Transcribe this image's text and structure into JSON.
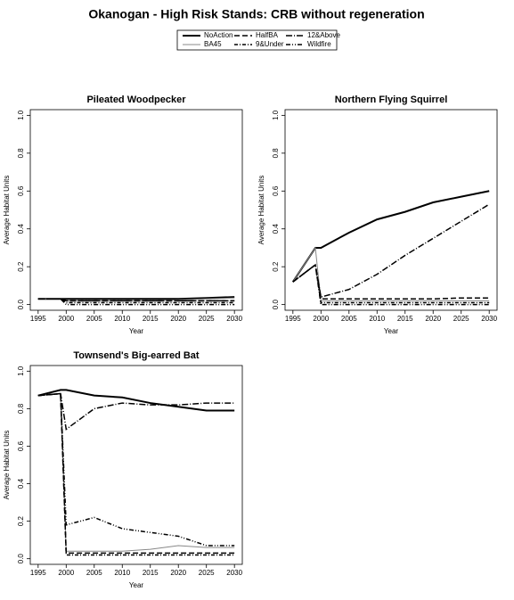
{
  "title": "Okanogan  - High Risk Stands: CRB without regeneration",
  "chart_data": [
    {
      "type": "line",
      "title": "Pileated Woodpecker",
      "xlabel": "Year",
      "ylabel": "Average Habitat Units",
      "x": [
        1995,
        1999,
        2000,
        2005,
        2010,
        2015,
        2020,
        2025,
        2030
      ],
      "xlim": [
        1993.6,
        2031.4
      ],
      "xticks": [
        1995,
        2000,
        2005,
        2010,
        2015,
        2020,
        2025,
        2030
      ],
      "ylim": [
        -0.03,
        1.03
      ],
      "yticks": [
        {
          "value": 0,
          "label": "0.0"
        },
        {
          "value": 0.2,
          "label": "0.2"
        },
        {
          "value": 0.4,
          "label": "0.4"
        },
        {
          "value": 0.6,
          "label": "0.6"
        },
        {
          "value": 0.8,
          "label": "0.8"
        },
        {
          "value": 1,
          "label": "1.0"
        }
      ],
      "series": [
        {
          "name": "NoAction",
          "color": "#000000",
          "width": 2,
          "dash": "none",
          "values": [
            0.03,
            0.03,
            0.03,
            0.03,
            0.03,
            0.03,
            0.03,
            0.035,
            0.04
          ]
        },
        {
          "name": "BA45",
          "color": "#888888",
          "width": 1,
          "dash": "none",
          "values": [
            0.03,
            0.03,
            0.02,
            0.02,
            0.02,
            0.02,
            0.025,
            0.03,
            0.035
          ]
        },
        {
          "name": "HalfBA",
          "color": "#000000",
          "width": 1.5,
          "dash": "6,3",
          "values": [
            0.03,
            0.03,
            0.02,
            0.02,
            0.02,
            0.02,
            0.02,
            0.02,
            0.02
          ]
        },
        {
          "name": "9&Under",
          "color": "#000000",
          "width": 1.5,
          "dash": "4,2,1,2",
          "values": [
            0.03,
            0.03,
            0.01,
            0.01,
            0.01,
            0.01,
            0.01,
            0.01,
            0.01
          ]
        },
        {
          "name": "12&Above",
          "color": "#000000",
          "width": 1.5,
          "dash": "7,2,1,2",
          "values": [
            0.03,
            0.03,
            0.02,
            0.02,
            0.02,
            0.02,
            0.02,
            0.02,
            0.02
          ]
        },
        {
          "name": "Wildfire",
          "color": "#000000",
          "width": 1.5,
          "dash": "5,2,1,2,1,2",
          "values": [
            0.03,
            0.03,
            0,
            0,
            0,
            0,
            0,
            0,
            0
          ]
        }
      ]
    },
    {
      "type": "line",
      "title": "Northern Flying Squirrel",
      "xlabel": "Year",
      "ylabel": "Average Habitat Units",
      "x": [
        1995,
        1999,
        2000,
        2005,
        2010,
        2015,
        2020,
        2025,
        2030
      ],
      "xlim": [
        1993.6,
        2031.4
      ],
      "xticks": [
        1995,
        2000,
        2005,
        2010,
        2015,
        2020,
        2025,
        2030
      ],
      "ylim": [
        -0.03,
        1.03
      ],
      "yticks": [
        {
          "value": 0,
          "label": "0.0"
        },
        {
          "value": 0.2,
          "label": "0.2"
        },
        {
          "value": 0.4,
          "label": "0.4"
        },
        {
          "value": 0.6,
          "label": "0.6"
        },
        {
          "value": 0.8,
          "label": "0.8"
        },
        {
          "value": 1,
          "label": "1.0"
        }
      ],
      "series": [
        {
          "values": [
            0.12,
            0.3,
            0.3,
            0.38,
            0.45,
            0.49,
            0.54,
            0.57,
            0.6
          ]
        },
        {
          "values": [
            0.12,
            0.3,
            0.02,
            0.02,
            0.02,
            0.02,
            0.02,
            0.02,
            0.02
          ]
        },
        {
          "values": [
            0.12,
            0.21,
            0.03,
            0.03,
            0.03,
            0.03,
            0.03,
            0.035,
            0.035
          ]
        },
        {
          "values": [
            0.12,
            0.21,
            0.01,
            0.01,
            0.01,
            0.01,
            0.01,
            0.01,
            0.01
          ]
        },
        {
          "values": [
            0.12,
            0.21,
            0.04,
            0.08,
            0.16,
            0.26,
            0.35,
            0.44,
            0.53
          ]
        },
        {
          "values": [
            0.12,
            0.21,
            0,
            0,
            0,
            0,
            0,
            0,
            0
          ]
        }
      ]
    },
    {
      "type": "line",
      "title": "Townsend's Big-earred Bat",
      "xlabel": "Year",
      "ylabel": "Average Habitat Units",
      "x": [
        1995,
        1999,
        2000,
        2005,
        2010,
        2015,
        2020,
        2025,
        2030
      ],
      "xlim": [
        1993.6,
        2031.4
      ],
      "xticks": [
        1995,
        2000,
        2005,
        2010,
        2015,
        2020,
        2025,
        2030
      ],
      "ylim": [
        -0.03,
        1.03
      ],
      "yticks": [
        {
          "value": 0,
          "label": "0.0"
        },
        {
          "value": 0.2,
          "label": "0.2"
        },
        {
          "value": 0.4,
          "label": "0.4"
        },
        {
          "value": 0.6,
          "label": "0.6"
        },
        {
          "value": 0.8,
          "label": "0.8"
        },
        {
          "value": 1,
          "label": "1.0"
        }
      ],
      "series": [
        {
          "values": [
            0.87,
            0.9,
            0.9,
            0.87,
            0.86,
            0.83,
            0.81,
            0.79,
            0.79
          ]
        },
        {
          "values": [
            0.87,
            0.88,
            0.04,
            0.04,
            0.04,
            0.05,
            0.07,
            0.06,
            0.06
          ]
        },
        {
          "values": [
            0.87,
            0.88,
            0.03,
            0.03,
            0.03,
            0.03,
            0.03,
            0.03,
            0.03
          ]
        },
        {
          "values": [
            0.87,
            0.88,
            0.02,
            0.02,
            0.02,
            0.02,
            0.02,
            0.02,
            0.02
          ]
        },
        {
          "values": [
            0.87,
            0.88,
            0.69,
            0.8,
            0.83,
            0.82,
            0.82,
            0.83,
            0.83
          ]
        },
        {
          "values": [
            0.87,
            0.88,
            0.18,
            0.22,
            0.16,
            0.14,
            0.12,
            0.07,
            0.07
          ]
        }
      ]
    }
  ]
}
